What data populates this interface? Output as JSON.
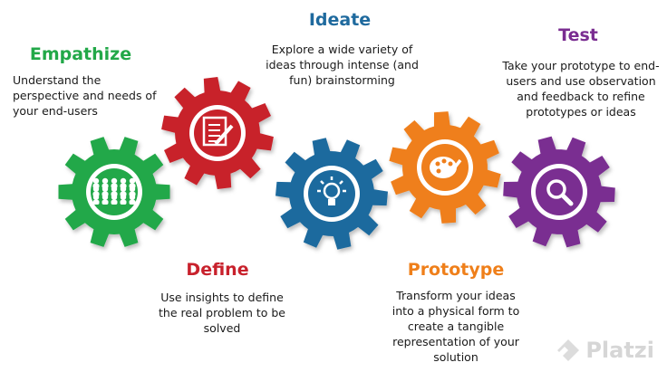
{
  "stages": [
    {
      "id": "empathize",
      "title": "Empathize",
      "description": "Understand the perspective and needs of your end-users",
      "color": "#22a848",
      "icon": "people-group-icon"
    },
    {
      "id": "define",
      "title": "Define",
      "description": "Use insights to define the real problem to be solved",
      "color": "#c8212c",
      "icon": "document-pencil-icon"
    },
    {
      "id": "ideate",
      "title": "Ideate",
      "description": "Explore a wide variety of ideas through intense (and fun) brainstorming",
      "color": "#1f6a9e",
      "icon": "lightbulb-icon"
    },
    {
      "id": "prototype",
      "title": "Prototype",
      "description": "Transform your ideas into a physical form to create a tangible representation of your solution",
      "color": "#ef7f1a",
      "icon": "paint-palette-icon"
    },
    {
      "id": "test",
      "title": "Test",
      "description": "Take your prototype to end-users and use observation and feedback to refine prototypes or ideas",
      "color": "#7a2d91",
      "icon": "magnifier-icon"
    }
  ],
  "watermark": {
    "text": "Platzi"
  },
  "colors": {
    "title_empathize": "#22a848",
    "title_ideate": "#1f6a9e",
    "title_test": "#7a2d91",
    "title_define": "#c8212c",
    "title_prototype": "#ef7f1a"
  }
}
